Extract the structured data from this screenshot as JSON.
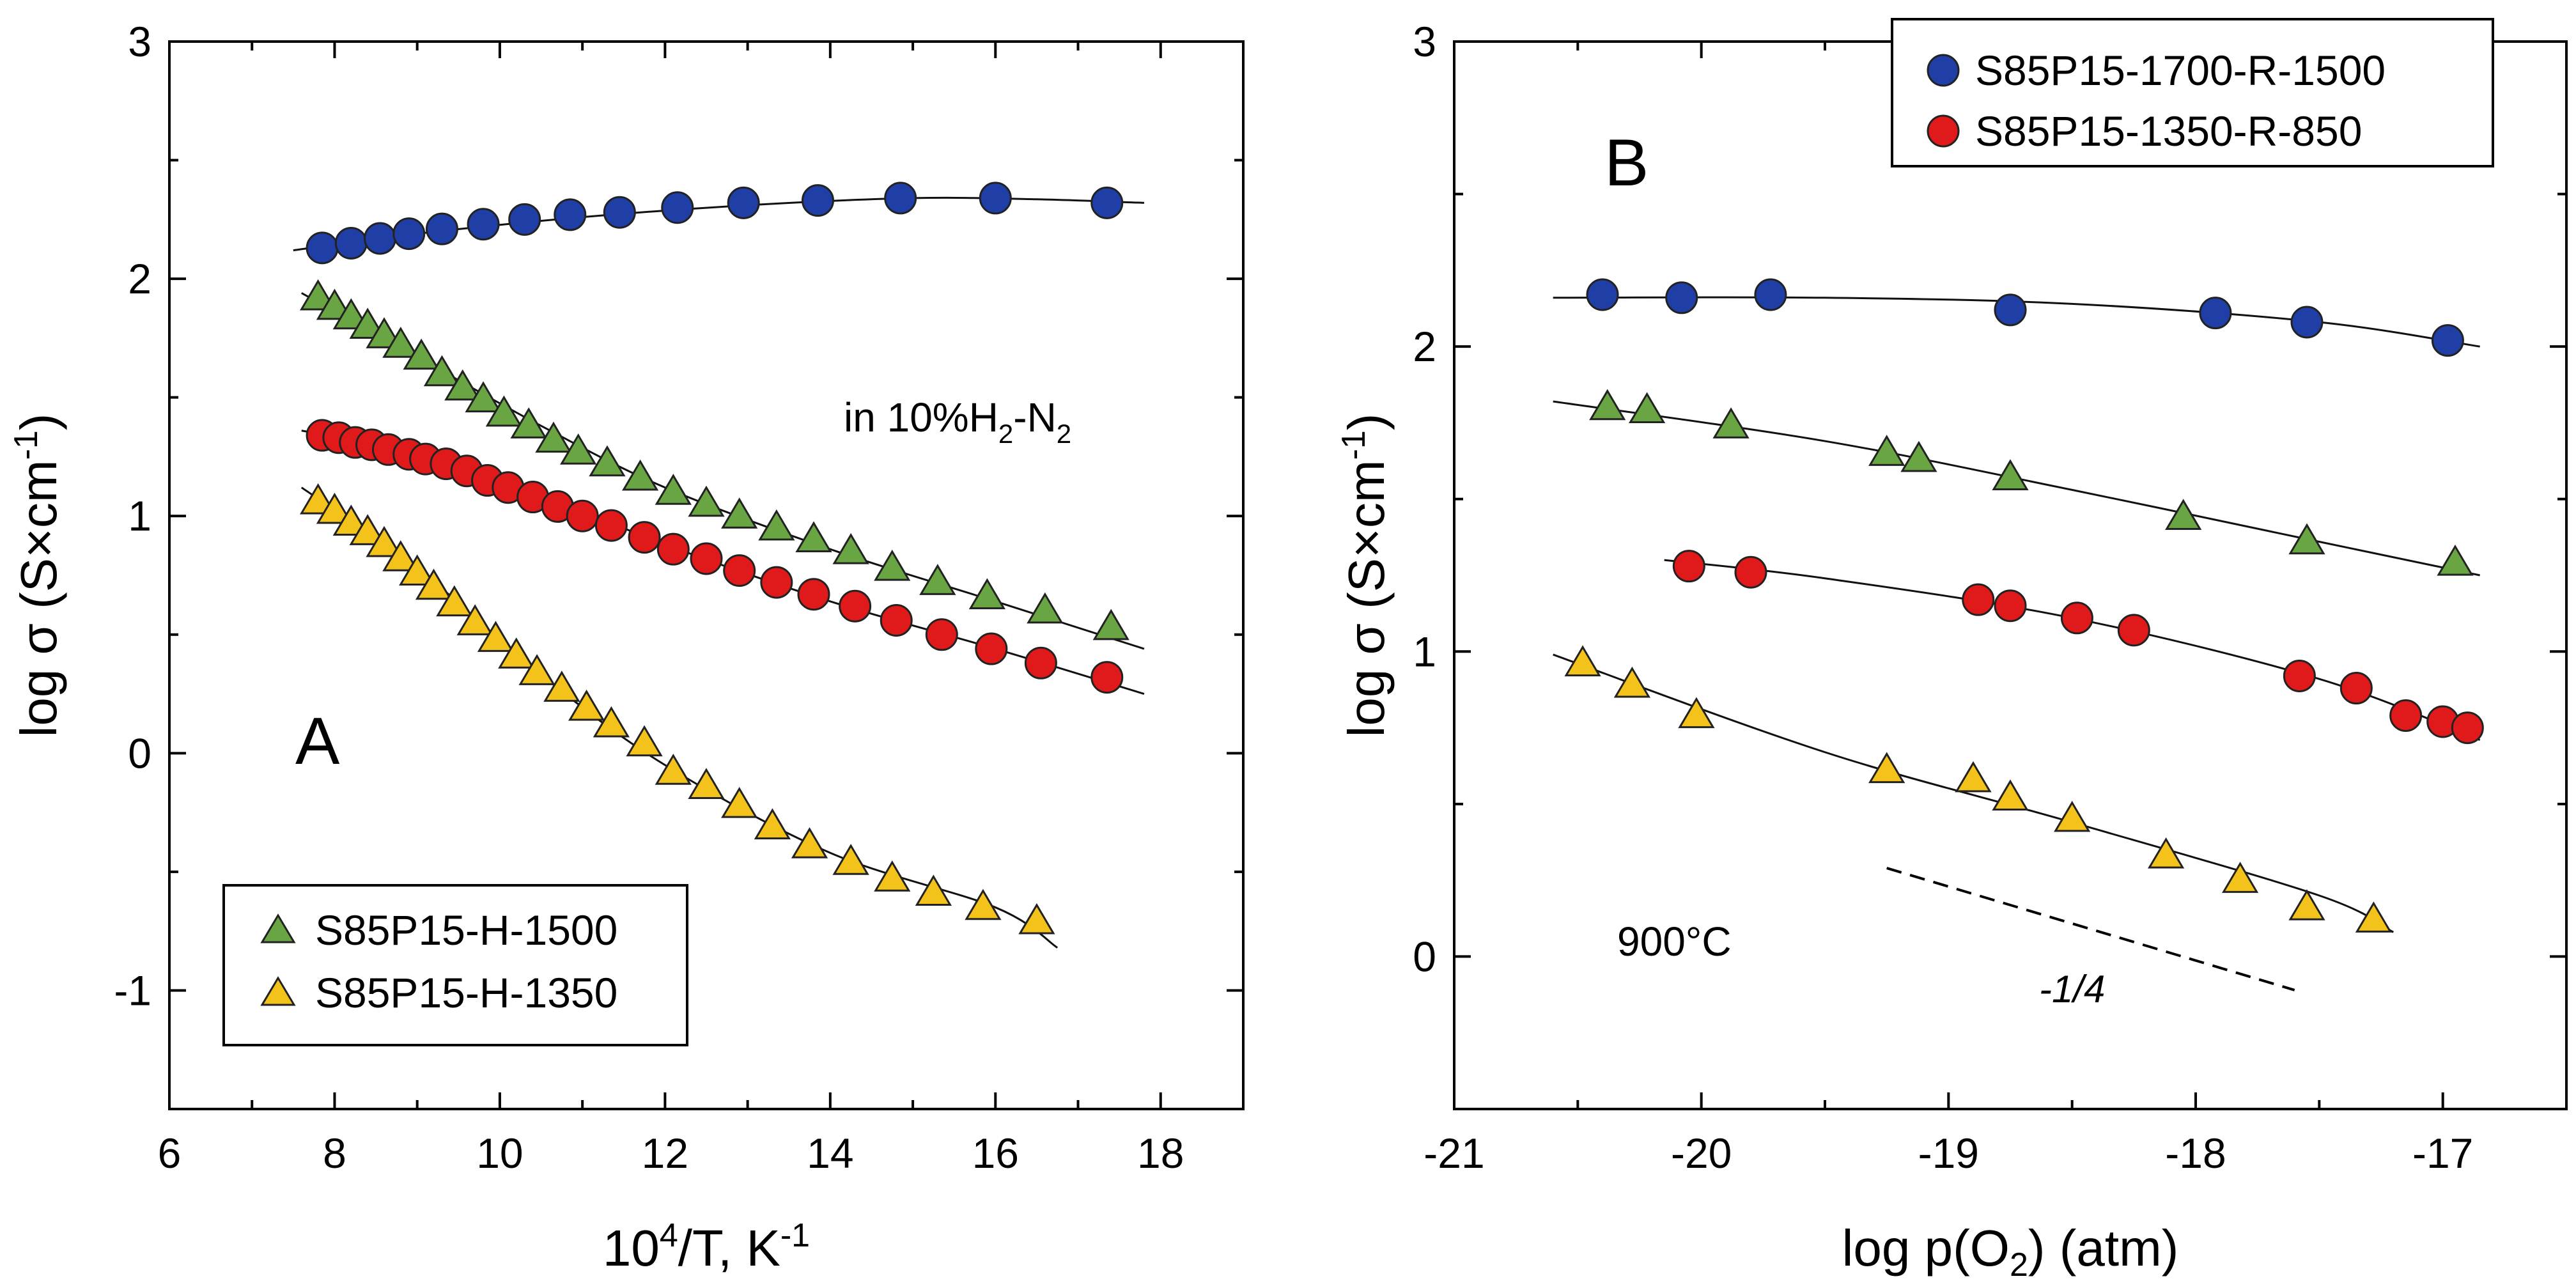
{
  "chart_data": [
    {
      "panel": "A",
      "type": "scatter",
      "xlabel": "10⁴/T, K⁻¹",
      "xlabel_base": "10",
      "xlabel_sup1": "4",
      "xlabel_mid": "/T, K",
      "xlabel_sup2": "-1",
      "ylabel": "log σ (S×cm⁻¹)",
      "ylabel_main": "log σ (S×cm",
      "ylabel_sup": "-1",
      "ylabel_end": ")",
      "xlim": [
        6,
        19
      ],
      "ylim": [
        -1.5,
        3
      ],
      "xticks": [
        6,
        8,
        10,
        12,
        14,
        16,
        18
      ],
      "xticks_minor": [
        7,
        9,
        11,
        13,
        15,
        17
      ],
      "yticks": [
        -1,
        0,
        1,
        2,
        3
      ],
      "yticks_minor": [
        -0.5,
        0.5,
        1.5,
        2.5
      ],
      "annotation": {
        "pre": "in 10%H",
        "sub1": "2",
        "mid": "-N",
        "sub2": "2"
      },
      "legend": {
        "position": "bottom-left",
        "entries": [
          "S85P15-H-1500",
          "S85P15-H-1350"
        ]
      },
      "series": [
        {
          "name": "S85P15-1700-R-1500",
          "marker": "circle",
          "color": "#1f3fa6",
          "in_legend": false,
          "x": [
            7.85,
            8.2,
            8.55,
            8.9,
            9.3,
            9.8,
            10.3,
            10.85,
            11.45,
            12.15,
            12.95,
            13.85,
            14.85,
            16.0,
            17.35
          ],
          "y": [
            2.13,
            2.15,
            2.17,
            2.19,
            2.21,
            2.23,
            2.25,
            2.27,
            2.28,
            2.3,
            2.32,
            2.33,
            2.34,
            2.34,
            2.32
          ],
          "fit": [
            [
              7.5,
              2.12
            ],
            [
              9,
              2.19
            ],
            [
              11,
              2.26
            ],
            [
              13,
              2.31
            ],
            [
              15,
              2.34
            ],
            [
              16.5,
              2.335
            ],
            [
              17.8,
              2.32
            ]
          ]
        },
        {
          "name": "S85P15-H-1500",
          "marker": "triangle",
          "color": "#6aa544",
          "in_legend": true,
          "x": [
            7.8,
            8.0,
            8.2,
            8.4,
            8.6,
            8.8,
            9.05,
            9.3,
            9.55,
            9.8,
            10.05,
            10.35,
            10.65,
            10.95,
            11.3,
            11.7,
            12.1,
            12.5,
            12.9,
            13.35,
            13.8,
            14.25,
            14.75,
            15.3,
            15.9,
            16.6,
            17.4
          ],
          "y": [
            1.92,
            1.88,
            1.84,
            1.8,
            1.76,
            1.72,
            1.67,
            1.6,
            1.54,
            1.49,
            1.43,
            1.38,
            1.32,
            1.27,
            1.22,
            1.16,
            1.1,
            1.05,
            1.0,
            0.95,
            0.9,
            0.85,
            0.78,
            0.72,
            0.66,
            0.6,
            0.53
          ],
          "fit": [
            [
              7.6,
              1.94
            ],
            [
              9,
              1.67
            ],
            [
              10.5,
              1.38
            ],
            [
              12,
              1.12
            ],
            [
              14,
              0.86
            ],
            [
              16,
              0.64
            ],
            [
              17.8,
              0.44
            ]
          ]
        },
        {
          "name": "S85P15-1350-R-850",
          "marker": "circle",
          "color": "#e01a1a",
          "in_legend": false,
          "x": [
            7.85,
            8.05,
            8.25,
            8.45,
            8.65,
            8.9,
            9.1,
            9.35,
            9.6,
            9.85,
            10.1,
            10.4,
            10.7,
            11.0,
            11.35,
            11.75,
            12.1,
            12.5,
            12.9,
            13.35,
            13.8,
            14.3,
            14.8,
            15.35,
            15.95,
            16.55,
            17.35
          ],
          "y": [
            1.34,
            1.33,
            1.31,
            1.3,
            1.28,
            1.26,
            1.24,
            1.22,
            1.19,
            1.15,
            1.12,
            1.08,
            1.04,
            1.0,
            0.96,
            0.91,
            0.86,
            0.82,
            0.77,
            0.72,
            0.67,
            0.62,
            0.56,
            0.5,
            0.44,
            0.38,
            0.32
          ],
          "fit": [
            [
              7.6,
              1.36
            ],
            [
              9,
              1.26
            ],
            [
              10.5,
              1.09
            ],
            [
              12,
              0.88
            ],
            [
              14,
              0.64
            ],
            [
              16,
              0.44
            ],
            [
              17.8,
              0.25
            ]
          ]
        },
        {
          "name": "S85P15-H-1350",
          "marker": "triangle",
          "color": "#f3c21b",
          "in_legend": true,
          "x": [
            7.8,
            8.0,
            8.2,
            8.4,
            8.6,
            8.8,
            9.0,
            9.2,
            9.45,
            9.7,
            9.95,
            10.2,
            10.45,
            10.75,
            11.05,
            11.35,
            11.75,
            12.1,
            12.5,
            12.9,
            13.3,
            13.75,
            14.25,
            14.75,
            15.25,
            15.85,
            16.5
          ],
          "y": [
            1.06,
            1.02,
            0.97,
            0.93,
            0.88,
            0.82,
            0.76,
            0.7,
            0.63,
            0.55,
            0.48,
            0.41,
            0.34,
            0.27,
            0.19,
            0.12,
            0.04,
            -0.08,
            -0.14,
            -0.22,
            -0.31,
            -0.39,
            -0.46,
            -0.53,
            -0.59,
            -0.65,
            -0.71
          ],
          "fit": [
            [
              7.6,
              1.12
            ],
            [
              9,
              0.78
            ],
            [
              10.5,
              0.33
            ],
            [
              12,
              -0.05
            ],
            [
              14,
              -0.42
            ],
            [
              16,
              -0.65
            ],
            [
              16.75,
              -0.82
            ]
          ]
        }
      ]
    },
    {
      "panel": "B",
      "type": "scatter",
      "xlabel": "log p(O₂) (atm)",
      "xlabel_main": "log p(O",
      "xlabel_sub": "2",
      "xlabel_end": ") (atm)",
      "ylabel": "log σ (S×cm⁻¹)",
      "ylabel_main": "log σ (S×cm",
      "ylabel_sup": "-1",
      "ylabel_end": ")",
      "xlim": [
        -21,
        -16.5
      ],
      "ylim": [
        -0.5,
        3
      ],
      "xticks": [
        -21,
        -20,
        -19,
        -18,
        -17
      ],
      "xticks_minor": [
        -20.5,
        -19.5,
        -18.5,
        -17.5
      ],
      "yticks": [
        0,
        1,
        2,
        3
      ],
      "yticks_minor": [
        -0.5,
        0.5,
        1.5,
        2.5
      ],
      "annotation_temp": "900°C",
      "slope_label": "-1/4",
      "slope_line": [
        [
          -19.25,
          0.29
        ],
        [
          -17.6,
          -0.11
        ]
      ],
      "legend": {
        "position": "top-right",
        "entries": [
          "S85P15-1700-R-1500",
          "S85P15-1350-R-850"
        ]
      },
      "series": [
        {
          "name": "S85P15-1700-R-1500",
          "marker": "circle",
          "color": "#1f3fa6",
          "in_legend": true,
          "x": [
            -20.4,
            -20.08,
            -19.72,
            -18.75,
            -17.92,
            -17.55,
            -16.98
          ],
          "y": [
            2.17,
            2.16,
            2.17,
            2.12,
            2.11,
            2.08,
            2.02
          ],
          "fit": [
            [
              -20.6,
              2.16
            ],
            [
              -19.5,
              2.16
            ],
            [
              -18.5,
              2.14
            ],
            [
              -17.5,
              2.08
            ],
            [
              -16.85,
              2.0
            ]
          ]
        },
        {
          "name": "S85P15-H-1500",
          "marker": "triangle",
          "color": "#6aa544",
          "in_legend": false,
          "x": [
            -20.38,
            -20.22,
            -19.88,
            -19.25,
            -19.12,
            -18.75,
            -18.05,
            -17.55,
            -16.95
          ],
          "y": [
            1.8,
            1.79,
            1.74,
            1.65,
            1.63,
            1.57,
            1.44,
            1.36,
            1.29
          ],
          "fit": [
            [
              -20.6,
              1.82
            ],
            [
              -19.5,
              1.69
            ],
            [
              -18.5,
              1.53
            ],
            [
              -17.5,
              1.36
            ],
            [
              -16.85,
              1.25
            ]
          ]
        },
        {
          "name": "S85P15-1350-R-850",
          "marker": "circle",
          "color": "#e01a1a",
          "in_legend": false,
          "x": [
            -20.05,
            -19.8,
            -18.88,
            -18.75,
            -18.48,
            -18.25,
            -17.58,
            -17.35,
            -17.15,
            -17.0,
            -16.9
          ],
          "y": [
            1.28,
            1.26,
            1.17,
            1.15,
            1.11,
            1.07,
            0.92,
            0.88,
            0.79,
            0.77,
            0.75
          ],
          "fit": [
            [
              -20.15,
              1.3
            ],
            [
              -19.5,
              1.24
            ],
            [
              -18.5,
              1.11
            ],
            [
              -17.5,
              0.91
            ],
            [
              -16.85,
              0.71
            ]
          ]
        },
        {
          "name": "S85P15-H-1350",
          "marker": "triangle",
          "color": "#f3c21b",
          "in_legend": false,
          "x": [
            -20.48,
            -20.28,
            -20.02,
            -19.25,
            -18.9,
            -18.75,
            -18.5,
            -18.12,
            -17.82,
            -17.55,
            -17.28
          ],
          "y": [
            0.96,
            0.89,
            0.79,
            0.61,
            0.58,
            0.52,
            0.45,
            0.33,
            0.25,
            0.16,
            0.12
          ],
          "fit": [
            [
              -20.6,
              0.99
            ],
            [
              -19.5,
              0.67
            ],
            [
              -18.5,
              0.44
            ],
            [
              -17.5,
              0.2
            ],
            [
              -17.2,
              0.08
            ]
          ]
        }
      ]
    }
  ]
}
